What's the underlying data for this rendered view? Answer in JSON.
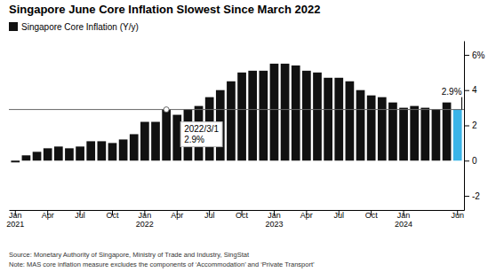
{
  "chart_data": {
    "type": "bar",
    "title": "Singapore June Core Inflation Slowest Since March 2022",
    "categories": [
      "Jan\n2021",
      null,
      null,
      "Apr",
      null,
      null,
      "Jul",
      null,
      null,
      "Oct",
      null,
      null,
      "Jan\n2022",
      null,
      null,
      "Apr",
      null,
      null,
      "Jul",
      null,
      null,
      "Oct",
      null,
      null,
      "Jan\n2023",
      null,
      null,
      "Apr",
      null,
      null,
      "Jul",
      null,
      null,
      "Oct",
      null,
      null,
      "Jan\n2024",
      null,
      null,
      null,
      null,
      "Jun"
    ],
    "series": [
      {
        "name": "Singapore Core Inflation (Y/y)",
        "color": "#111111",
        "colors": [
          "#111111",
          "#111111",
          "#111111",
          "#111111",
          "#111111",
          "#111111",
          "#111111",
          "#111111",
          "#111111",
          "#111111",
          "#111111",
          "#111111",
          "#111111",
          "#111111",
          "#111111",
          "#111111",
          "#111111",
          "#111111",
          "#111111",
          "#111111",
          "#111111",
          "#111111",
          "#111111",
          "#111111",
          "#111111",
          "#111111",
          "#111111",
          "#111111",
          "#111111",
          "#111111",
          "#111111",
          "#111111",
          "#111111",
          "#111111",
          "#111111",
          "#111111",
          "#111111",
          "#111111",
          "#111111",
          "#111111",
          "#111111",
          "#3ab4e8"
        ],
        "values": [
          -0.1,
          0.3,
          0.5,
          0.7,
          0.8,
          0.7,
          0.8,
          1.1,
          1.1,
          1.0,
          1.2,
          1.5,
          2.2,
          2.2,
          2.9,
          2.6,
          2.9,
          3.1,
          3.6,
          4.0,
          4.5,
          5.0,
          5.1,
          5.1,
          5.5,
          5.5,
          5.4,
          5.1,
          5.0,
          4.7,
          4.7,
          4.5,
          4.0,
          3.7,
          3.6,
          3.3,
          3.0,
          3.1,
          3.0,
          2.9,
          3.3,
          2.9
        ]
      }
    ],
    "ylim": [
      -2.8,
      6.8
    ],
    "yticks": [
      -2,
      0,
      2,
      4,
      {
        "value": 6,
        "label": "6%"
      }
    ],
    "grid": false,
    "legend": "upper left",
    "hline": {
      "value": 2.9,
      "label": "2.9%"
    },
    "annotation": {
      "index": 14,
      "value": 2.9,
      "date": "2022/3/1",
      "label": "2.9%"
    },
    "source": "Source: Monetary Authority of Singapore, Ministry of Trade and Industry, SingStat",
    "note": "Note: MAS core inflation measure excludes the components of ‘Accommodation’ and ‘Private Transport’"
  }
}
